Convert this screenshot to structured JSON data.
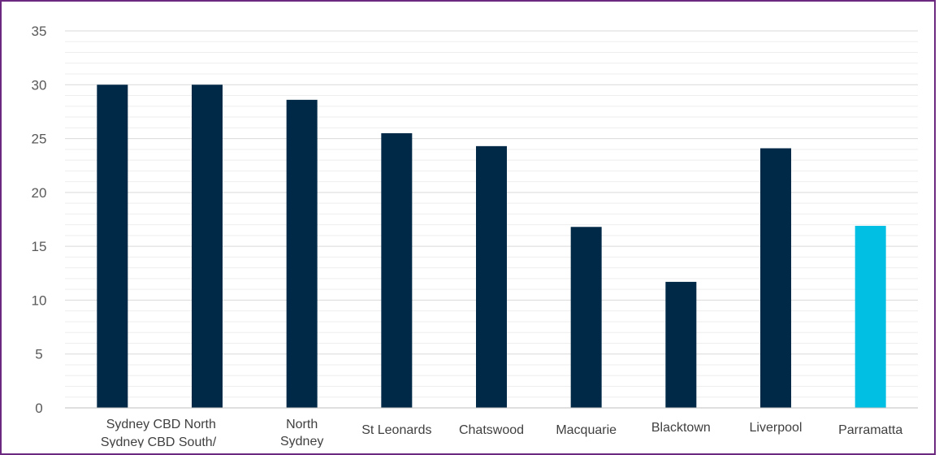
{
  "chart_data": {
    "type": "bar",
    "title": "",
    "xlabel": "",
    "ylabel": "",
    "ylim": [
      0,
      35
    ],
    "yticks": [
      0,
      5,
      10,
      15,
      20,
      25,
      30,
      35
    ],
    "grid": true,
    "legend": "none",
    "categories": [
      "Sydney CBD North",
      "Sydney CBD South/",
      "North Sydney",
      "St Leonards",
      "Chatswood",
      "Macquarie",
      "Blacktown",
      "Liverpool",
      "Parramatta"
    ],
    "values": [
      30.0,
      30.0,
      28.6,
      25.5,
      24.3,
      16.8,
      11.7,
      24.1,
      16.9
    ],
    "colors": [
      "#002947",
      "#002947",
      "#002947",
      "#002947",
      "#002947",
      "#002947",
      "#002947",
      "#002947",
      "#00bfe3"
    ]
  }
}
